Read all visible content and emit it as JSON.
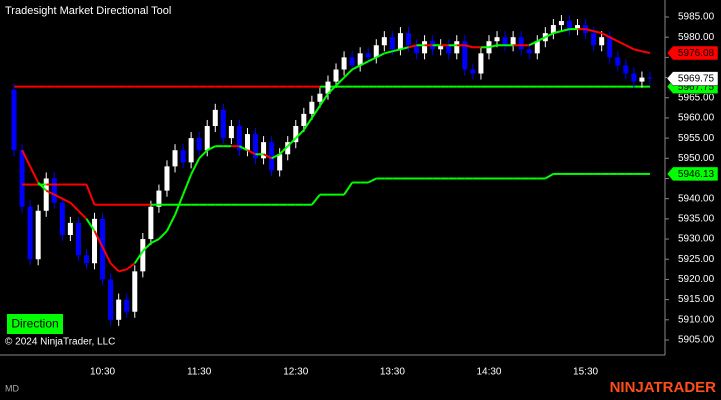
{
  "chart_data": {
    "type": "candlestick",
    "title": "Tradesight Market Directional Tool",
    "categories": [
      null,
      null,
      null,
      null,
      null,
      null,
      null,
      null,
      null,
      null,
      null,
      "10:30",
      null,
      null,
      null,
      null,
      null,
      null,
      null,
      null,
      null,
      null,
      null,
      "11:30",
      null,
      null,
      null,
      null,
      null,
      null,
      null,
      null,
      null,
      null,
      null,
      "12:30",
      null,
      null,
      null,
      null,
      null,
      null,
      null,
      null,
      null,
      null,
      null,
      "13:30",
      null,
      null,
      null,
      null,
      null,
      null,
      null,
      null,
      null,
      null,
      null,
      "14:30",
      null,
      null,
      null,
      null,
      null,
      null,
      null,
      null,
      null,
      null,
      null,
      "15:30",
      null,
      null,
      null,
      null,
      null,
      null,
      null,
      null
    ],
    "open": [
      5967,
      5952,
      5938,
      5925,
      5937,
      5945,
      5939,
      5931,
      5934,
      5926,
      5924,
      5935,
      5920,
      5910,
      5915,
      5912,
      5922,
      5930,
      5938,
      5942,
      5948,
      5952,
      5949,
      5955,
      5952,
      5958,
      5962,
      5955,
      5958,
      5952,
      5956,
      5950,
      5954,
      5947,
      5951,
      5954,
      5958,
      5961,
      5964,
      5966,
      5969,
      5972,
      5975,
      5973,
      5976,
      5975,
      5978,
      5980,
      5977,
      5981,
      5978,
      5976,
      5979,
      5977,
      5978,
      5976,
      5979,
      5972,
      5971,
      5976,
      5979,
      5980,
      5978,
      5980,
      5977,
      5976,
      5979,
      5981,
      5983,
      5984,
      5982,
      5983,
      5981,
      5978,
      5980,
      5975,
      5973,
      5971,
      5969,
      5970
    ],
    "high": [
      5968.5,
      5953.5,
      5939.5,
      5938.5,
      5946.5,
      5946.5,
      5940.5,
      5935.5,
      5935.5,
      5927.5,
      5936.5,
      5936.5,
      5921.5,
      5916.5,
      5916.5,
      5923.5,
      5931.5,
      5939.5,
      5943.5,
      5949.5,
      5953.5,
      5953.5,
      5956.5,
      5956.5,
      5959.5,
      5963.5,
      5963.5,
      5959.5,
      5959.5,
      5957.5,
      5957.5,
      5955.5,
      5955.5,
      5952.5,
      5955.5,
      5959.5,
      5962.5,
      5965.5,
      5967.5,
      5970.5,
      5973.5,
      5976.5,
      5976.5,
      5977.5,
      5977.5,
      5979.5,
      5981.5,
      5981.5,
      5982.5,
      5982.5,
      5979.5,
      5980.5,
      5980.5,
      5979.5,
      5979.5,
      5980.5,
      5980.5,
      5973.5,
      5977.5,
      5980.5,
      5981.5,
      5981.5,
      5981.5,
      5981.5,
      5978.5,
      5980.5,
      5982.5,
      5984.5,
      5985.5,
      5985.5,
      5984.5,
      5984.5,
      5982.5,
      5981.5,
      5981.5,
      5976.5,
      5974.5,
      5972.5,
      5971.5,
      5971.5
    ],
    "low": [
      5950.5,
      5936.5,
      5923.5,
      5923.5,
      5935.5,
      5937.5,
      5929.5,
      5929.5,
      5924.5,
      5922.5,
      5922.5,
      5918.5,
      5908.5,
      5908.5,
      5910.5,
      5910.5,
      5920.5,
      5928.5,
      5936.5,
      5940.5,
      5946.5,
      5947.5,
      5947.5,
      5950.5,
      5950.5,
      5956.5,
      5953.5,
      5953.5,
      5950.5,
      5950.5,
      5948.5,
      5948.5,
      5945.5,
      5945.5,
      5949.5,
      5952.5,
      5956.5,
      5959.5,
      5962.5,
      5964.5,
      5967.5,
      5970.5,
      5971.5,
      5971.5,
      5973.5,
      5973.5,
      5976.5,
      5975.5,
      5975.5,
      5976.5,
      5974.5,
      5974.5,
      5975.5,
      5975.5,
      5974.5,
      5974.5,
      5970.5,
      5969.5,
      5969.5,
      5974.5,
      5977.5,
      5976.5,
      5976.5,
      5975.5,
      5974.5,
      5974.5,
      5977.5,
      5979.5,
      5981.5,
      5980.5,
      5980.5,
      5979.5,
      5976.5,
      5976.5,
      5973.5,
      5971.5,
      5969.5,
      5967.5,
      5967.5,
      5968.25
    ],
    "close": [
      5952,
      5938,
      5925,
      5937,
      5945,
      5939,
      5931,
      5934,
      5926,
      5924,
      5935,
      5920,
      5910,
      5915,
      5912,
      5922,
      5930,
      5938,
      5942,
      5948,
      5952,
      5949,
      5955,
      5952,
      5958,
      5962,
      5955,
      5958,
      5952,
      5956,
      5950,
      5954,
      5947,
      5951,
      5954,
      5958,
      5961,
      5964,
      5966,
      5969,
      5972,
      5975,
      5973,
      5976,
      5975,
      5978,
      5980,
      5977,
      5981,
      5978,
      5976,
      5979,
      5977,
      5978,
      5976,
      5979,
      5972,
      5971,
      5976,
      5979,
      5980,
      5978,
      5980,
      5977,
      5976,
      5979,
      5981,
      5983,
      5984,
      5982,
      5983,
      5981,
      5978,
      5980,
      5975,
      5973,
      5971,
      5969,
      5970,
      5969.75
    ],
    "up_color": "#ffffff",
    "down_color": "#0000ff",
    "lines": [
      {
        "above_color": "#00ff00",
        "below_color": "#ff0000",
        "values": [
          null,
          5952,
          5948,
          5944,
          5942,
          5941,
          5940,
          5939,
          5937,
          5935,
          5932,
          5928,
          5924,
          5922,
          5922.5,
          5924,
          5927,
          5929,
          5930,
          5932,
          5936,
          5941,
          5946,
          5950,
          5952,
          5953,
          5953,
          5953,
          5953,
          5952,
          5951,
          5951,
          5950,
          5951,
          5953,
          5955,
          5957,
          5960,
          5963,
          5966,
          5968,
          5970,
          5972,
          5973,
          5974,
          5975,
          5976,
          5976.5,
          5977,
          5977.5,
          5978,
          5978,
          5978,
          5978,
          5978,
          5978,
          5978,
          5977.5,
          5977.5,
          5977.5,
          5978,
          5978,
          5978,
          5978,
          5978,
          5979,
          5980,
          5981,
          5981.5,
          5982,
          5982,
          5982,
          5981.5,
          5981,
          5980,
          5979,
          5978,
          5977,
          5976.5,
          5976.08
        ]
      },
      {
        "above_color": "#00ff00",
        "below_color": "#ff0000",
        "values": [
          null,
          5943.5,
          5943.5,
          5943.5,
          5943.5,
          5943.5,
          5943.5,
          5943.5,
          5943.5,
          5943.5,
          5938.5,
          5938.5,
          5938.5,
          5938.5,
          5938.5,
          5938.5,
          5938.5,
          5938.5,
          5938.5,
          5938.5,
          5938.5,
          5938.5,
          5938.5,
          5938.5,
          5938.5,
          5938.5,
          5938.5,
          5938.5,
          5938.5,
          5938.5,
          5938.5,
          5938.5,
          5938.5,
          5938.5,
          5938.5,
          5938.5,
          5938.5,
          5938.5,
          5941,
          5941,
          5941,
          5941,
          5944,
          5944,
          5944,
          5945,
          5945,
          5945,
          5945,
          5945,
          5945,
          5945,
          5945,
          5945,
          5945,
          5945,
          5945,
          5945,
          5945,
          5945,
          5945,
          5945,
          5945,
          5945,
          5945,
          5945,
          5945,
          5946.13,
          5946.13,
          5946.13,
          5946.13,
          5946.13,
          5946.13,
          5946.13,
          5946.13,
          5946.13,
          5946.13,
          5946.13,
          5946.13,
          5946.13
        ]
      }
    ],
    "level": {
      "value": 5967.75,
      "above_color": "#00ff00",
      "below_color": "#ff0000"
    },
    "ylim": [
      5901.28,
      5989.21
    ],
    "yticks": [
      {
        "value": 5905,
        "label": "5905.00"
      },
      {
        "value": 5910,
        "label": "5910.00"
      },
      {
        "value": 5915,
        "label": "5915.00"
      },
      {
        "value": 5920,
        "label": "5920.00"
      },
      {
        "value": 5925,
        "label": "5925.00"
      },
      {
        "value": 5930,
        "label": "5930.00"
      },
      {
        "value": 5935,
        "label": "5935.00"
      },
      {
        "value": 5940,
        "label": "5940.00"
      },
      {
        "value": 5945,
        "label": "5945.00"
      },
      {
        "value": 5950,
        "label": "5950.00"
      },
      {
        "value": 5955,
        "label": "5955.00"
      },
      {
        "value": 5960,
        "label": "5960.00"
      },
      {
        "value": 5965,
        "label": "5965.00"
      },
      {
        "value": 5970,
        "label": "5970.00"
      },
      {
        "value": 5975,
        "label": "5975.00"
      },
      {
        "value": 5980,
        "label": "5980.00"
      },
      {
        "value": 5985,
        "label": "5985.00"
      }
    ]
  },
  "button": "Direction",
  "copyright": "© 2024 NinjaTrader, LLC",
  "instrument": "MD",
  "brand": "NINJATRADER"
}
